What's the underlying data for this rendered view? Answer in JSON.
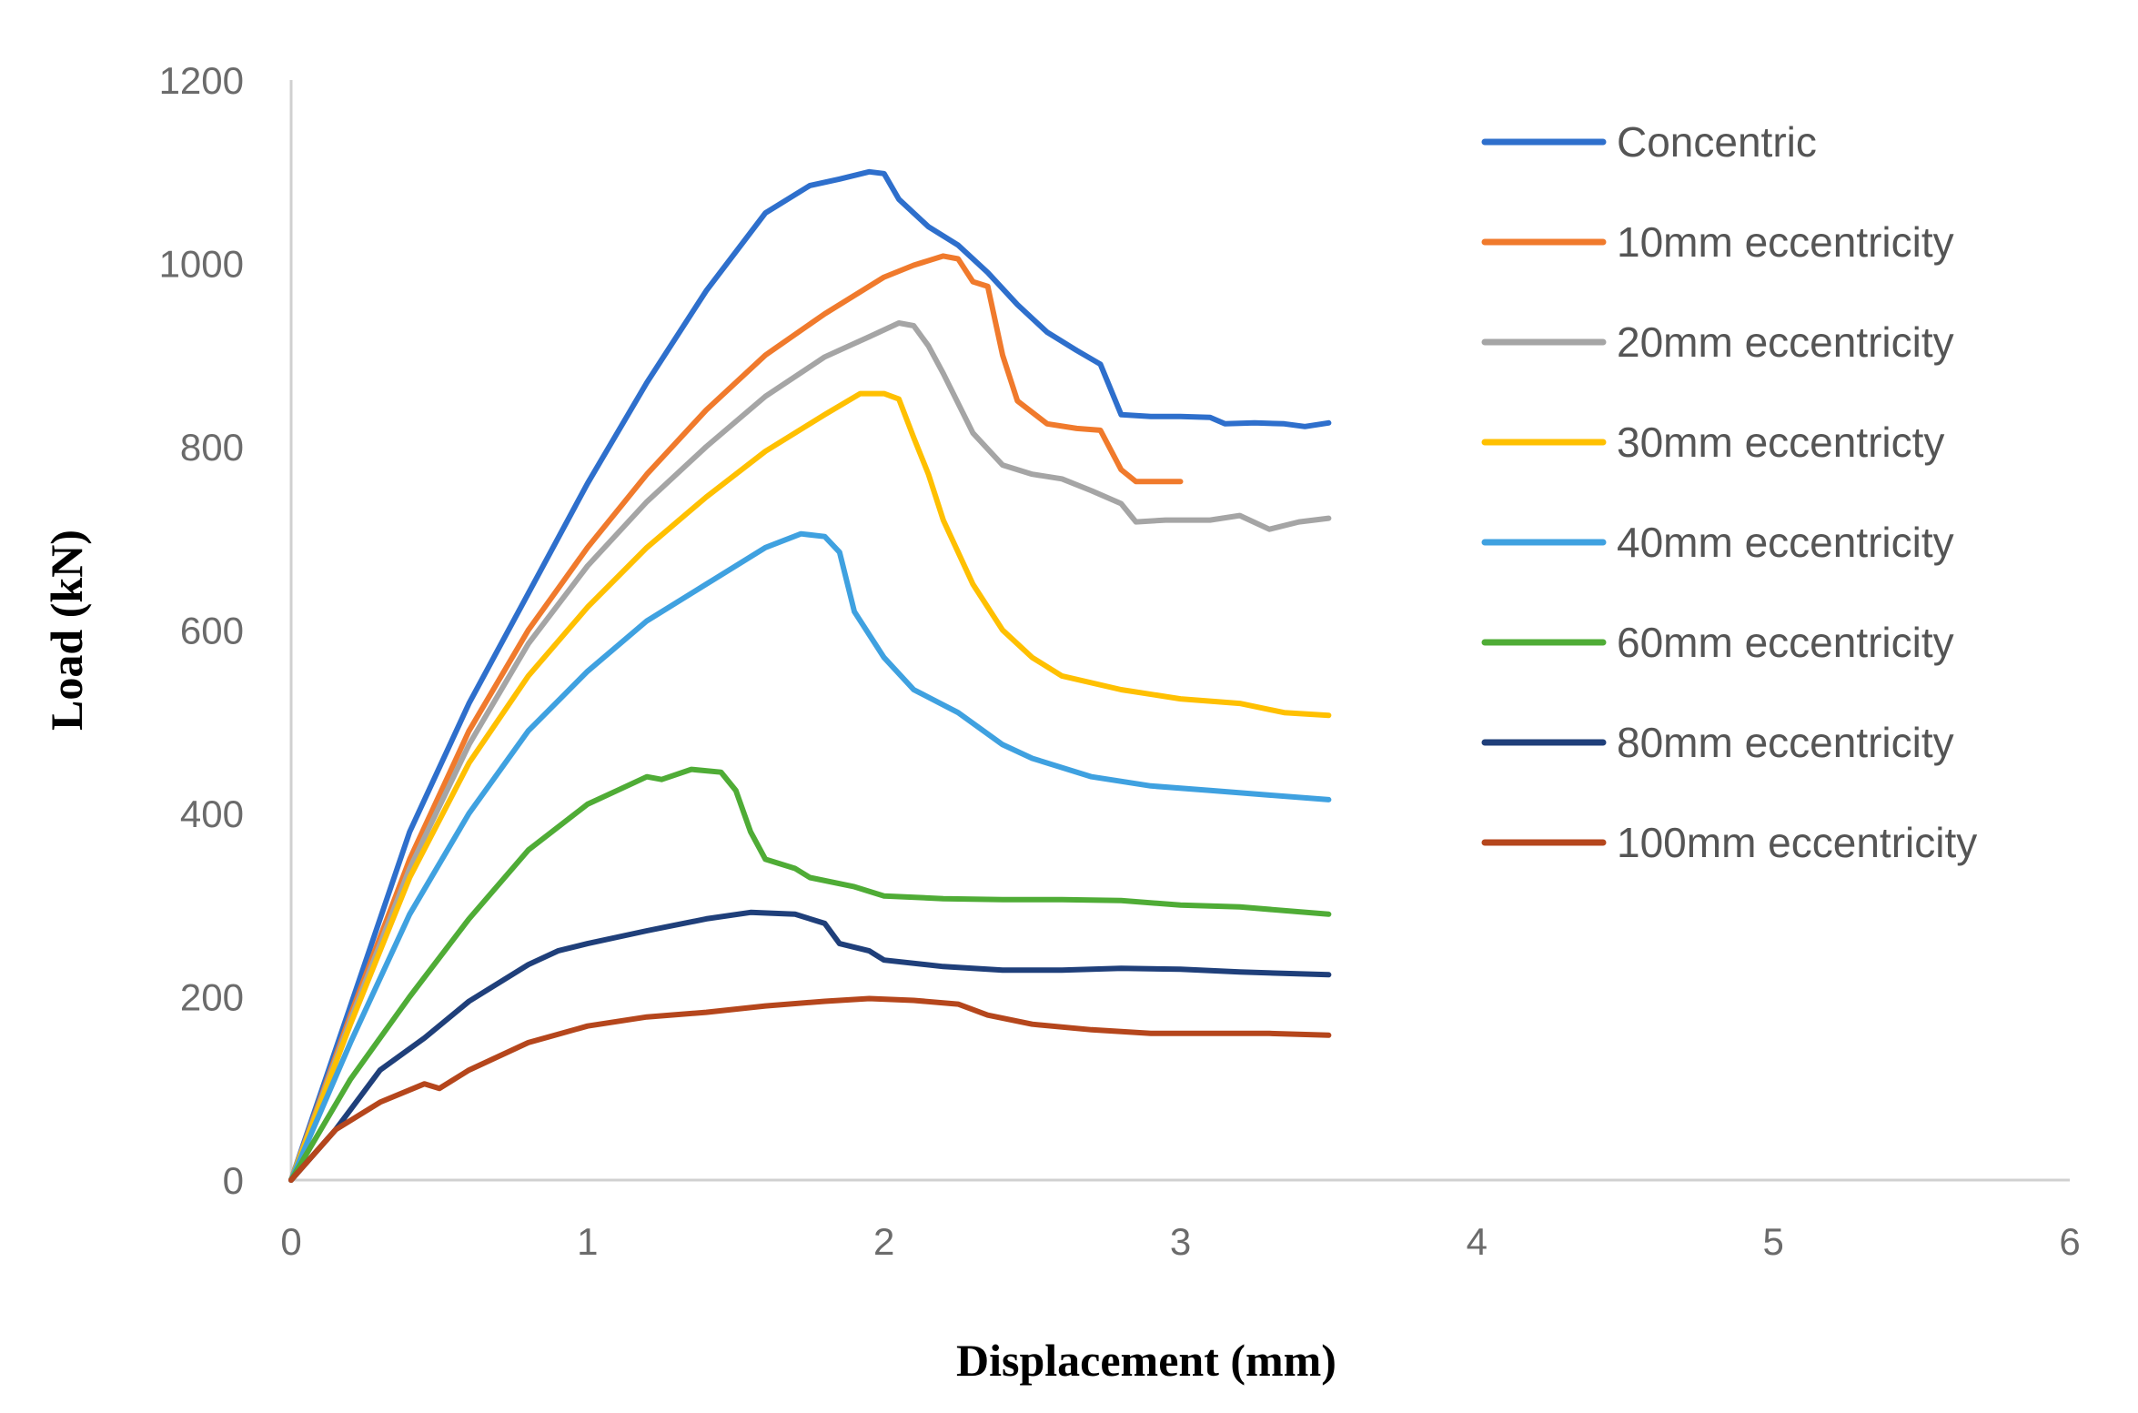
{
  "chart_data": {
    "type": "line",
    "title": "",
    "xlabel": "Displacement (mm)",
    "ylabel": "Load (kN)",
    "xlim": [
      0,
      6
    ],
    "ylim": [
      0,
      1200
    ],
    "xticks": [
      "0",
      "1",
      "2",
      "3",
      "4",
      "5",
      "6"
    ],
    "yticks": [
      "0",
      "200",
      "400",
      "600",
      "800",
      "1000",
      "1200"
    ],
    "legend_position": "right",
    "series": [
      {
        "name": "Concentric",
        "color": "#2e6fcc",
        "points": [
          [
            0,
            0
          ],
          [
            0.2,
            190
          ],
          [
            0.4,
            380
          ],
          [
            0.6,
            520
          ],
          [
            0.8,
            640
          ],
          [
            1.0,
            760
          ],
          [
            1.2,
            870
          ],
          [
            1.4,
            970
          ],
          [
            1.6,
            1055
          ],
          [
            1.75,
            1085
          ],
          [
            1.85,
            1092
          ],
          [
            1.95,
            1100
          ],
          [
            2.0,
            1098
          ],
          [
            2.05,
            1070
          ],
          [
            2.15,
            1040
          ],
          [
            2.25,
            1020
          ],
          [
            2.35,
            990
          ],
          [
            2.45,
            955
          ],
          [
            2.55,
            925
          ],
          [
            2.65,
            905
          ],
          [
            2.73,
            890
          ],
          [
            2.8,
            835
          ],
          [
            2.9,
            833
          ],
          [
            3.0,
            833
          ],
          [
            3.1,
            832
          ],
          [
            3.15,
            825
          ],
          [
            3.25,
            826
          ],
          [
            3.35,
            825
          ],
          [
            3.42,
            822
          ],
          [
            3.5,
            826
          ]
        ]
      },
      {
        "name": "10mm eccentricity",
        "color": "#f07a2c",
        "points": [
          [
            0,
            0
          ],
          [
            0.2,
            180
          ],
          [
            0.4,
            350
          ],
          [
            0.6,
            490
          ],
          [
            0.8,
            600
          ],
          [
            1.0,
            690
          ],
          [
            1.2,
            770
          ],
          [
            1.4,
            840
          ],
          [
            1.6,
            900
          ],
          [
            1.8,
            945
          ],
          [
            2.0,
            985
          ],
          [
            2.1,
            998
          ],
          [
            2.2,
            1008
          ],
          [
            2.25,
            1005
          ],
          [
            2.3,
            980
          ],
          [
            2.35,
            975
          ],
          [
            2.4,
            900
          ],
          [
            2.45,
            850
          ],
          [
            2.55,
            825
          ],
          [
            2.65,
            820
          ],
          [
            2.73,
            818
          ],
          [
            2.8,
            775
          ],
          [
            2.85,
            762
          ],
          [
            3.0,
            762
          ]
        ]
      },
      {
        "name": "20mm eccentricity",
        "color": "#a5a5a5",
        "points": [
          [
            0,
            0
          ],
          [
            0.2,
            175
          ],
          [
            0.4,
            340
          ],
          [
            0.6,
            475
          ],
          [
            0.8,
            585
          ],
          [
            1.0,
            670
          ],
          [
            1.2,
            740
          ],
          [
            1.4,
            800
          ],
          [
            1.6,
            855
          ],
          [
            1.8,
            898
          ],
          [
            1.95,
            920
          ],
          [
            2.05,
            935
          ],
          [
            2.1,
            932
          ],
          [
            2.15,
            910
          ],
          [
            2.2,
            880
          ],
          [
            2.3,
            815
          ],
          [
            2.4,
            780
          ],
          [
            2.5,
            770
          ],
          [
            2.6,
            765
          ],
          [
            2.7,
            752
          ],
          [
            2.8,
            738
          ],
          [
            2.85,
            718
          ],
          [
            2.95,
            720
          ],
          [
            3.1,
            720
          ],
          [
            3.2,
            725
          ],
          [
            3.3,
            710
          ],
          [
            3.4,
            718
          ],
          [
            3.5,
            722
          ]
        ]
      },
      {
        "name": "30mm eccentricty",
        "color": "#ffc000",
        "points": [
          [
            0,
            0
          ],
          [
            0.2,
            170
          ],
          [
            0.4,
            330
          ],
          [
            0.6,
            455
          ],
          [
            0.8,
            550
          ],
          [
            1.0,
            625
          ],
          [
            1.2,
            690
          ],
          [
            1.4,
            745
          ],
          [
            1.6,
            795
          ],
          [
            1.8,
            835
          ],
          [
            1.92,
            858
          ],
          [
            2.0,
            858
          ],
          [
            2.05,
            852
          ],
          [
            2.1,
            810
          ],
          [
            2.15,
            770
          ],
          [
            2.2,
            720
          ],
          [
            2.3,
            650
          ],
          [
            2.4,
            600
          ],
          [
            2.5,
            570
          ],
          [
            2.6,
            550
          ],
          [
            2.8,
            535
          ],
          [
            3.0,
            525
          ],
          [
            3.2,
            520
          ],
          [
            3.35,
            510
          ],
          [
            3.5,
            507
          ]
        ]
      },
      {
        "name": "40mm eccentricity",
        "color": "#3fa1e0",
        "points": [
          [
            0,
            0
          ],
          [
            0.2,
            150
          ],
          [
            0.4,
            290
          ],
          [
            0.6,
            400
          ],
          [
            0.8,
            490
          ],
          [
            1.0,
            555
          ],
          [
            1.2,
            610
          ],
          [
            1.4,
            650
          ],
          [
            1.6,
            690
          ],
          [
            1.72,
            705
          ],
          [
            1.8,
            702
          ],
          [
            1.85,
            685
          ],
          [
            1.9,
            620
          ],
          [
            2.0,
            570
          ],
          [
            2.1,
            535
          ],
          [
            2.25,
            510
          ],
          [
            2.4,
            475
          ],
          [
            2.5,
            460
          ],
          [
            2.7,
            440
          ],
          [
            2.9,
            430
          ],
          [
            3.1,
            425
          ],
          [
            3.3,
            420
          ],
          [
            3.5,
            415
          ]
        ]
      },
      {
        "name": "60mm eccentricity",
        "color": "#4fac36",
        "points": [
          [
            0,
            0
          ],
          [
            0.2,
            110
          ],
          [
            0.4,
            200
          ],
          [
            0.6,
            285
          ],
          [
            0.8,
            360
          ],
          [
            1.0,
            410
          ],
          [
            1.1,
            425
          ],
          [
            1.2,
            440
          ],
          [
            1.25,
            437
          ],
          [
            1.35,
            448
          ],
          [
            1.45,
            445
          ],
          [
            1.5,
            425
          ],
          [
            1.55,
            380
          ],
          [
            1.6,
            350
          ],
          [
            1.7,
            340
          ],
          [
            1.75,
            330
          ],
          [
            1.9,
            320
          ],
          [
            2.0,
            310
          ],
          [
            2.2,
            307
          ],
          [
            2.4,
            306
          ],
          [
            2.6,
            306
          ],
          [
            2.8,
            305
          ],
          [
            3.0,
            300
          ],
          [
            3.2,
            298
          ],
          [
            3.5,
            290
          ]
        ]
      },
      {
        "name": "80mm eccentricity",
        "color": "#1f3f7a",
        "points": [
          [
            0,
            0
          ],
          [
            0.15,
            55
          ],
          [
            0.3,
            120
          ],
          [
            0.45,
            155
          ],
          [
            0.6,
            195
          ],
          [
            0.8,
            235
          ],
          [
            0.9,
            250
          ],
          [
            1.0,
            258
          ],
          [
            1.2,
            272
          ],
          [
            1.4,
            285
          ],
          [
            1.55,
            292
          ],
          [
            1.7,
            290
          ],
          [
            1.8,
            280
          ],
          [
            1.85,
            258
          ],
          [
            1.95,
            250
          ],
          [
            2.0,
            240
          ],
          [
            2.2,
            233
          ],
          [
            2.4,
            229
          ],
          [
            2.6,
            229
          ],
          [
            2.8,
            231
          ],
          [
            3.0,
            230
          ],
          [
            3.2,
            227
          ],
          [
            3.5,
            224
          ]
        ]
      },
      {
        "name": "100mm eccentricity",
        "color": "#b5461c",
        "points": [
          [
            0,
            0
          ],
          [
            0.15,
            55
          ],
          [
            0.3,
            85
          ],
          [
            0.45,
            105
          ],
          [
            0.5,
            100
          ],
          [
            0.6,
            120
          ],
          [
            0.8,
            150
          ],
          [
            1.0,
            168
          ],
          [
            1.2,
            178
          ],
          [
            1.4,
            183
          ],
          [
            1.6,
            190
          ],
          [
            1.8,
            195
          ],
          [
            1.95,
            198
          ],
          [
            2.1,
            196
          ],
          [
            2.25,
            192
          ],
          [
            2.35,
            180
          ],
          [
            2.5,
            170
          ],
          [
            2.7,
            164
          ],
          [
            2.9,
            160
          ],
          [
            3.1,
            160
          ],
          [
            3.3,
            160
          ],
          [
            3.5,
            158
          ]
        ]
      }
    ]
  }
}
